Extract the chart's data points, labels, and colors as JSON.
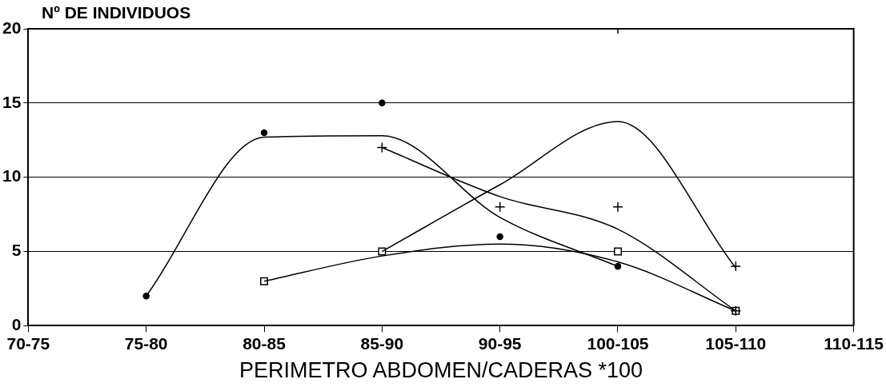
{
  "chart_data": {
    "type": "line",
    "ylabel": "Nº DE INDIVIDUOS",
    "xlabel": "PERIMETRO ABDOMEN/CADERAS *100",
    "categories": [
      "70-75",
      "75-80",
      "80-85",
      "85-90",
      "90-95",
      "100-105",
      "105-110",
      "110-115"
    ],
    "ylim": [
      0,
      20
    ],
    "yticks": [
      0,
      5,
      10,
      15,
      20
    ],
    "grid": "y",
    "legend": false,
    "series": [
      {
        "color": "#000000",
        "marker": "none",
        "values": [
          null,
          2,
          12.7,
          12.8,
          7.3,
          4.0,
          null,
          null
        ]
      },
      {
        "color": "#000000",
        "marker": "none",
        "values": [
          null,
          null,
          null,
          12,
          8.7,
          6.5,
          1,
          null
        ]
      },
      {
        "color": "#000000",
        "marker": "none",
        "values": [
          null,
          null,
          null,
          5,
          9.5,
          13.75,
          3.9,
          null
        ]
      },
      {
        "color": "#000000",
        "marker": "none",
        "values": [
          null,
          null,
          3,
          4.7,
          5.5,
          4.3,
          1,
          null
        ]
      },
      {
        "type": "scatter",
        "color": "#000000",
        "marker": "circle",
        "x": [
          "75-80",
          "80-85",
          "85-90",
          "100-105"
        ],
        "values": [
          2,
          13,
          15,
          4
        ]
      },
      {
        "type": "scatter",
        "color": "#000000",
        "marker": "cross",
        "x": [
          "85-90",
          "90-95",
          "100-105",
          "105-110"
        ],
        "values": [
          12,
          8,
          8,
          1
        ]
      },
      {
        "type": "scatter",
        "color": "#000000",
        "marker": "cross",
        "x": [
          "100-105",
          "105-110"
        ],
        "values": [
          20,
          4
        ]
      },
      {
        "type": "scatter",
        "color": "#000000",
        "marker": "square",
        "x": [
          "80-85",
          "85-90",
          "100-105",
          "105-110"
        ],
        "values": [
          3,
          5,
          5,
          1
        ]
      },
      {
        "type": "scatter",
        "color": "#000000",
        "marker": "circle",
        "x": [
          "90-95"
        ],
        "values": [
          6
        ]
      }
    ]
  }
}
